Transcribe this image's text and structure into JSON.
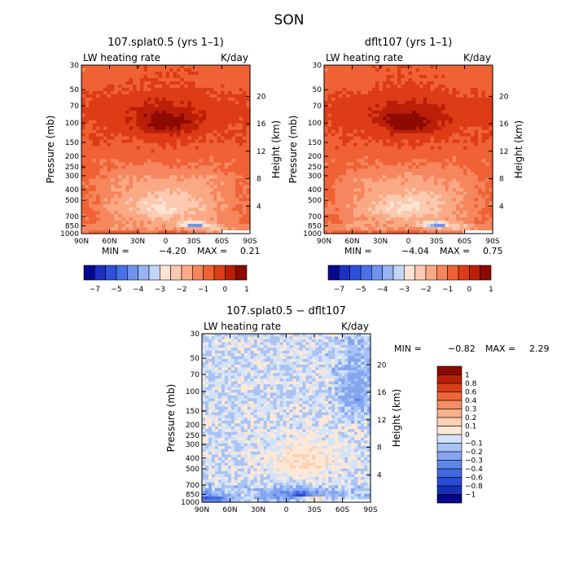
{
  "figure": {
    "suptitle": "SON"
  },
  "colors": {
    "cool": [
      "#08088f",
      "#1d30c4",
      "#2f4fdc",
      "#4870e8",
      "#6d93ee",
      "#97b4f3",
      "#c3d6f8"
    ],
    "warm": [
      "#fde4d2",
      "#fccab0",
      "#f9aa85",
      "#f6865e",
      "#f06235",
      "#dd3c16",
      "#bb1f07",
      "#8c0a02"
    ],
    "diff_neg": [
      "#070785",
      "#1830b8",
      "#2b4bd6",
      "#4068e2",
      "#5f86ea",
      "#84a5f0",
      "#a9c3f5",
      "#d2e3fa"
    ],
    "diff_pos": [
      "#fde8d6",
      "#fcd0b2",
      "#f9b08a",
      "#f58c62",
      "#ee6638",
      "#dc3f17",
      "#ba2006",
      "#8a0a02"
    ]
  },
  "chart_data": [
    {
      "type": "heatmap",
      "title": "107.splat0.5 (yrs 1–1)",
      "left_label": "LW heating rate",
      "units": "K/day",
      "ylabel": "Pressure (mb)",
      "ylabel_right": "Height (km)",
      "x_ticks": [
        "90N",
        "60N",
        "30N",
        "0",
        "30S",
        "60S",
        "90S"
      ],
      "y_ticks": [
        "30",
        "50",
        "70",
        "100",
        "150",
        "200",
        "250",
        "300",
        "400",
        "500",
        "700",
        "850",
        "1000"
      ],
      "y_ticks_right": [
        "20",
        "16",
        "12",
        "8",
        "4"
      ],
      "min_label": "MIN =",
      "min_value": "−4.20",
      "max_label": "MAX =",
      "max_value": "0.21",
      "colorbar_labels": [
        "−7",
        "−5",
        "−4",
        "−3",
        "−2",
        "−1",
        "0",
        "1"
      ]
    },
    {
      "type": "heatmap",
      "title": "dflt107 (yrs 1–1)",
      "left_label": "LW heating rate",
      "units": "K/day",
      "ylabel": "Pressure (mb)",
      "ylabel_right": "Height (km)",
      "x_ticks": [
        "90N",
        "60N",
        "30N",
        "0",
        "30S",
        "60S",
        "90S"
      ],
      "y_ticks": [
        "30",
        "50",
        "70",
        "100",
        "150",
        "200",
        "250",
        "300",
        "400",
        "500",
        "700",
        "850",
        "1000"
      ],
      "y_ticks_right": [
        "20",
        "16",
        "12",
        "8",
        "4"
      ],
      "min_label": "MIN =",
      "min_value": "−4.04",
      "max_label": "MAX =",
      "max_value": "0.75",
      "colorbar_labels": [
        "−7",
        "−5",
        "−4",
        "−3",
        "−2",
        "−1",
        "0",
        "1"
      ]
    },
    {
      "type": "heatmap",
      "title": "107.splat0.5 − dflt107",
      "left_label": "LW heating rate",
      "units": "K/day",
      "ylabel": "Pressure (mb)",
      "ylabel_right": "Height (km)",
      "x_ticks": [
        "90N",
        "60N",
        "30N",
        "0",
        "30S",
        "60S",
        "90S"
      ],
      "y_ticks": [
        "30",
        "50",
        "70",
        "100",
        "150",
        "200",
        "250",
        "300",
        "400",
        "500",
        "700",
        "850",
        "1000"
      ],
      "y_ticks_right": [
        "20",
        "16",
        "12",
        "8",
        "4"
      ],
      "min_label": "MIN =",
      "min_value": "−0.82",
      "max_label": "MAX =",
      "max_value": "2.29",
      "colorbar_labels": [
        "1",
        "0.8",
        "0.6",
        "0.4",
        "0.3",
        "0.2",
        "0.1",
        "0",
        "−0.1",
        "−0.2",
        "−0.3",
        "−0.4",
        "−0.6",
        "−0.8",
        "−1"
      ]
    }
  ]
}
